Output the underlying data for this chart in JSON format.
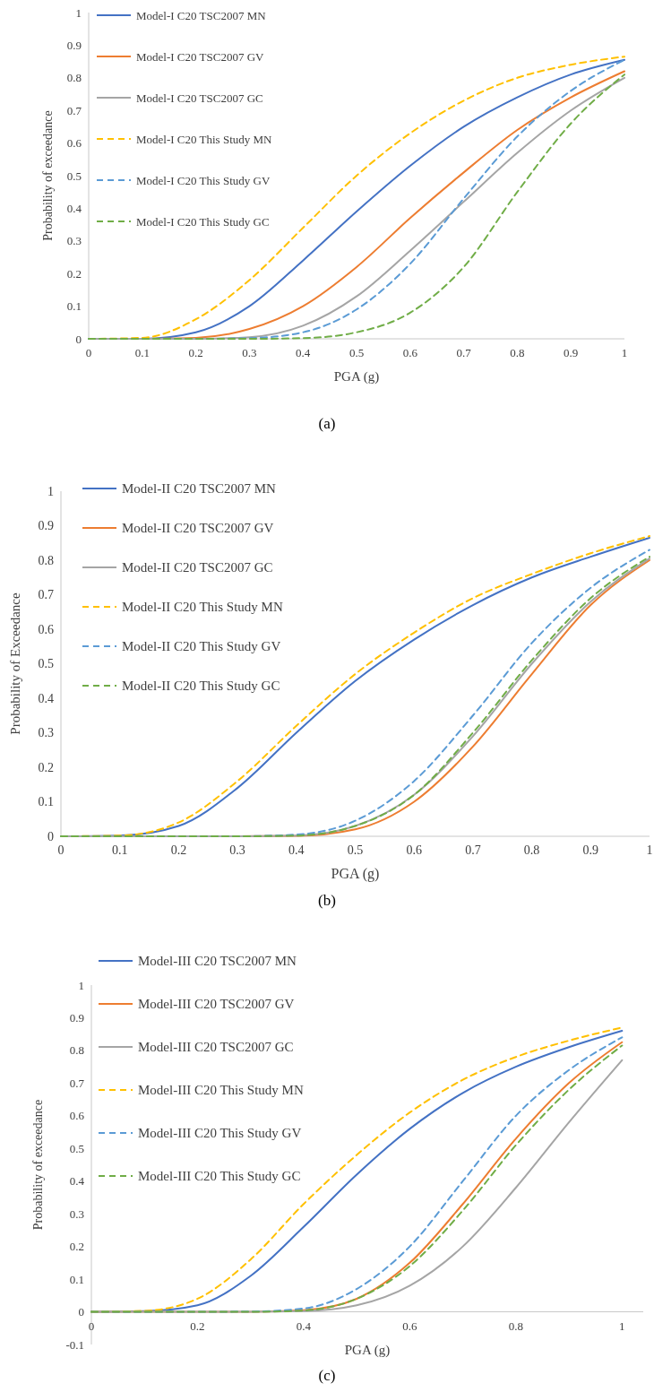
{
  "chart_data": [
    {
      "type": "line",
      "xlabel": "PGA (g)",
      "ylabel": "Probability of exceedance",
      "x": [
        0,
        0.1,
        0.2,
        0.3,
        0.4,
        0.5,
        0.6,
        0.7,
        0.8,
        0.9,
        1
      ],
      "xlim": [
        0,
        1
      ],
      "ylim": [
        0,
        1
      ],
      "xticks": [
        0,
        0.1,
        0.2,
        0.3,
        0.4,
        0.5,
        0.6,
        0.7,
        0.8,
        0.9,
        1
      ],
      "yticks": [
        0,
        0.1,
        0.2,
        0.3,
        0.4,
        0.5,
        0.6,
        0.7,
        0.8,
        0.9,
        1
      ],
      "legend": "top left",
      "annotations": [
        "(a)"
      ],
      "series": [
        {
          "name": "Model-I C20 TSC2007 MN",
          "color": "#4472c4",
          "line_style": "solid",
          "values": [
            0,
            0,
            0.02,
            0.1,
            0.24,
            0.39,
            0.53,
            0.65,
            0.74,
            0.81,
            0.855
          ]
        },
        {
          "name": "Model-I C20 TSC2007 GV",
          "color": "#ed7d31",
          "line_style": "solid",
          "values": [
            0,
            0,
            0.003,
            0.03,
            0.1,
            0.22,
            0.37,
            0.51,
            0.64,
            0.74,
            0.82
          ]
        },
        {
          "name": "Model-I C20 TSC2007 GC",
          "color": "#a5a5a5",
          "line_style": "solid",
          "values": [
            0,
            0,
            0,
            0.005,
            0.04,
            0.13,
            0.27,
            0.42,
            0.57,
            0.7,
            0.8
          ]
        },
        {
          "name": "Model-I C20 This Study MN",
          "color": "#ffc000",
          "line_style": "dashed",
          "values": [
            0,
            0.003,
            0.06,
            0.18,
            0.34,
            0.5,
            0.63,
            0.73,
            0.8,
            0.84,
            0.865
          ]
        },
        {
          "name": "Model-I C20 This Study GV",
          "color": "#5b9bd5",
          "line_style": "dashed",
          "values": [
            0,
            0,
            0,
            0.002,
            0.02,
            0.09,
            0.23,
            0.43,
            0.62,
            0.76,
            0.855
          ]
        },
        {
          "name": "Model-I C20 This Study GC",
          "color": "#70ad47",
          "line_style": "dashed",
          "values": [
            0,
            0,
            0,
            0,
            0.002,
            0.02,
            0.08,
            0.22,
            0.45,
            0.66,
            0.81
          ]
        }
      ]
    },
    {
      "type": "line",
      "xlabel": "PGA (g)",
      "ylabel": "Probability of Exceedance",
      "x": [
        0,
        0.1,
        0.2,
        0.3,
        0.4,
        0.5,
        0.6,
        0.7,
        0.8,
        0.9,
        1
      ],
      "xlim": [
        0,
        1
      ],
      "ylim": [
        0,
        1
      ],
      "xticks": [
        0,
        0.1,
        0.2,
        0.3,
        0.4,
        0.5,
        0.6,
        0.7,
        0.8,
        0.9,
        1
      ],
      "yticks": [
        0,
        0.1,
        0.2,
        0.3,
        0.4,
        0.5,
        0.6,
        0.7,
        0.8,
        0.9,
        1
      ],
      "legend": "top left",
      "annotations": [
        "(b)"
      ],
      "series": [
        {
          "name": "Model-II C20 TSC2007 MN",
          "color": "#4472c4",
          "line_style": "solid",
          "values": [
            0,
            0.002,
            0.03,
            0.14,
            0.3,
            0.45,
            0.57,
            0.67,
            0.75,
            0.81,
            0.865
          ]
        },
        {
          "name": "Model-II C20 TSC2007 GV",
          "color": "#ed7d31",
          "line_style": "solid",
          "values": [
            null,
            null,
            null,
            0,
            0.001,
            0.02,
            0.1,
            0.26,
            0.47,
            0.67,
            0.8
          ]
        },
        {
          "name": "Model-II C20 TSC2007 GC",
          "color": "#a5a5a5",
          "line_style": "solid",
          "values": [
            0,
            0,
            0,
            0,
            0.002,
            0.03,
            0.12,
            0.29,
            0.5,
            0.68,
            0.805
          ]
        },
        {
          "name": "Model-II C20 This Study MN",
          "color": "#ffc000",
          "line_style": "dashed",
          "values": [
            0,
            0.002,
            0.04,
            0.16,
            0.32,
            0.47,
            0.59,
            0.69,
            0.76,
            0.82,
            0.87
          ]
        },
        {
          "name": "Model-II C20 This Study GV",
          "color": "#5b9bd5",
          "line_style": "dashed",
          "values": [
            0,
            0,
            0,
            0,
            0.005,
            0.045,
            0.16,
            0.35,
            0.56,
            0.72,
            0.83
          ]
        },
        {
          "name": "Model-II C20 This Study GC",
          "color": "#70ad47",
          "line_style": "dashed",
          "values": [
            0,
            0,
            0,
            0,
            0.002,
            0.03,
            0.12,
            0.3,
            0.51,
            0.69,
            0.81
          ]
        }
      ]
    },
    {
      "type": "line",
      "xlabel": "PGA (g)",
      "ylabel": "Probability of exceedance",
      "x": [
        0,
        0.1,
        0.2,
        0.3,
        0.4,
        0.5,
        0.6,
        0.7,
        0.8,
        0.9,
        1
      ],
      "xlim": [
        0,
        1.04
      ],
      "ylim": [
        -0.1,
        1
      ],
      "xticks": [
        0,
        0.2,
        0.4,
        0.6,
        0.8,
        1
      ],
      "yticks": [
        -0.1,
        0,
        0.1,
        0.2,
        0.3,
        0.4,
        0.5,
        0.6,
        0.7,
        0.8,
        0.9,
        1
      ],
      "legend": "top left",
      "annotations": [
        "(c)"
      ],
      "series": [
        {
          "name": "Model-III C20 TSC2007 MN",
          "color": "#4472c4",
          "line_style": "solid",
          "values": [
            0,
            0.002,
            0.02,
            0.11,
            0.26,
            0.42,
            0.56,
            0.67,
            0.75,
            0.81,
            0.86
          ]
        },
        {
          "name": "Model-III C20 TSC2007 GV",
          "color": "#ed7d31",
          "line_style": "solid",
          "values": [
            0,
            0,
            0,
            0,
            0.005,
            0.04,
            0.15,
            0.33,
            0.53,
            0.7,
            0.825
          ]
        },
        {
          "name": "Model-III C20 TSC2007 GC",
          "color": "#a5a5a5",
          "line_style": "solid",
          "values": [
            0,
            0,
            0,
            0,
            0.002,
            0.02,
            0.08,
            0.2,
            0.38,
            0.58,
            0.77
          ]
        },
        {
          "name": "Model-III C20 This Study MN",
          "color": "#ffc000",
          "line_style": "dashed",
          "values": [
            0,
            0.003,
            0.04,
            0.16,
            0.33,
            0.48,
            0.61,
            0.71,
            0.78,
            0.83,
            0.87
          ]
        },
        {
          "name": "Model-III C20 This Study GV",
          "color": "#5b9bd5",
          "line_style": "dashed",
          "values": [
            0,
            0,
            0,
            0.001,
            0.01,
            0.07,
            0.2,
            0.4,
            0.6,
            0.74,
            0.84
          ]
        },
        {
          "name": "Model-III C20 This Study GC",
          "color": "#70ad47",
          "line_style": "dashed",
          "values": [
            0,
            0,
            0,
            0,
            0.004,
            0.04,
            0.14,
            0.31,
            0.51,
            0.68,
            0.815
          ]
        }
      ]
    }
  ]
}
